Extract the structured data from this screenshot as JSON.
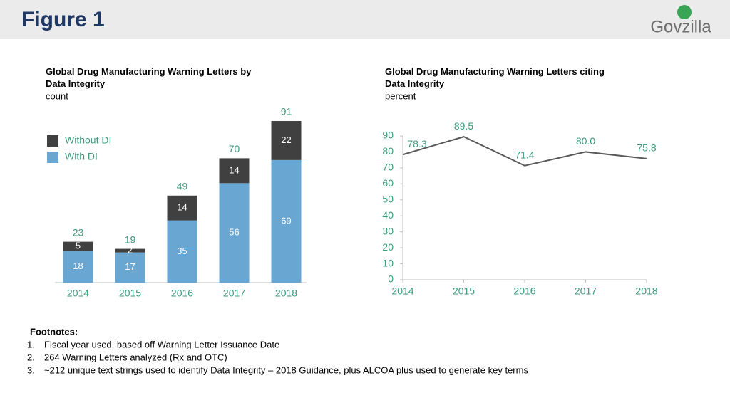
{
  "header": {
    "title": "Figure 1",
    "logo": "Govzilla"
  },
  "chart_data": [
    {
      "type": "bar",
      "stacked": true,
      "title": "Global Drug Manufacturing Warning Letters by Data Integrity",
      "subtitle": "count",
      "categories": [
        "2014",
        "2015",
        "2016",
        "2017",
        "2018"
      ],
      "series": [
        {
          "name": "With DI",
          "color": "#6aa6d2",
          "values": [
            18,
            17,
            35,
            56,
            69
          ]
        },
        {
          "name": "Without DI",
          "color": "#404040",
          "values": [
            5,
            2,
            14,
            14,
            22
          ]
        }
      ],
      "totals": [
        23,
        19,
        49,
        70,
        91
      ],
      "legend": "upper left"
    },
    {
      "type": "line",
      "title": "Global Drug Manufacturing Warning Letters citing Data Integrity",
      "subtitle": "percent",
      "categories": [
        "2014",
        "2015",
        "2016",
        "2017",
        "2018"
      ],
      "values": [
        78.3,
        89.5,
        71.4,
        80.0,
        75.8
      ],
      "value_labels": [
        "78.3",
        "89.5",
        "71.4",
        "80.0",
        "75.8"
      ],
      "color": "#595959",
      "ylim": [
        0,
        90
      ],
      "yticks": [
        0,
        10,
        20,
        30,
        40,
        50,
        60,
        70,
        80,
        90
      ],
      "grid": false
    }
  ],
  "footnotes": {
    "heading": "Footnotes:",
    "items": [
      {
        "marker": "1.",
        "text": "Fiscal year used, based off Warning Letter Issuance Date"
      },
      {
        "marker": "2.",
        "text": "264 Warning Letters analyzed (Rx and OTC)"
      },
      {
        "marker": "3.",
        "text": "~212 unique text strings used to identify Data Integrity – 2018 Guidance, plus ALCOA plus used to generate key terms"
      }
    ]
  }
}
